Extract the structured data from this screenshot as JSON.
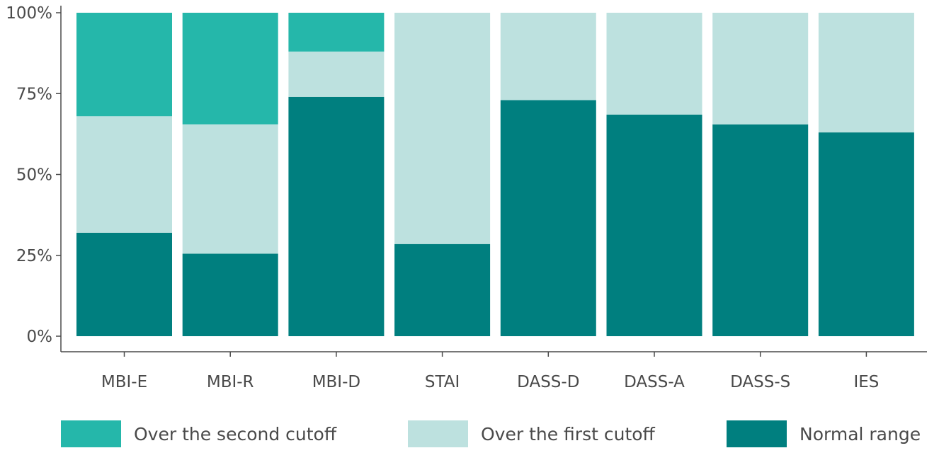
{
  "chart_data": {
    "type": "bar",
    "stacked": true,
    "categories": [
      "MBI-E",
      "MBI-R",
      "MBI-D",
      "STAI",
      "DASS-D",
      "DASS-A",
      "DASS-S",
      "IES"
    ],
    "series": [
      {
        "name": "Normal range",
        "color": "#007f7f",
        "values": [
          32,
          25.5,
          74,
          28.5,
          73,
          68.5,
          65.5,
          63
        ]
      },
      {
        "name": "Over the first cutoff",
        "color": "#bde1df",
        "values": [
          36,
          40,
          14,
          71.5,
          27,
          31.5,
          34.5,
          37
        ]
      },
      {
        "name": "Over the second cutoff",
        "color": "#25b7aa",
        "values": [
          32,
          34.5,
          12,
          0,
          0,
          0,
          0,
          0
        ]
      }
    ],
    "yticks": [
      "0%",
      "25%",
      "50%",
      "75%",
      "100%"
    ],
    "ylim": [
      0,
      100
    ],
    "legend_position": "bottom",
    "legend_order": [
      "Over the second cutoff",
      "Over the first cutoff",
      "Normal range"
    ]
  }
}
